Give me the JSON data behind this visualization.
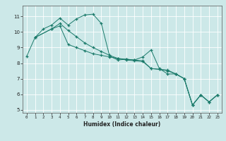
{
  "title": "",
  "xlabel": "Humidex (Indice chaleur)",
  "bg_color": "#cce8e8",
  "grid_color": "#ffffff",
  "line_color": "#1a7a6a",
  "xlim": [
    -0.5,
    23.5
  ],
  "ylim": [
    4.8,
    11.7
  ],
  "yticks": [
    5,
    6,
    7,
    8,
    9,
    10,
    11
  ],
  "xticks": [
    0,
    1,
    2,
    3,
    4,
    5,
    6,
    7,
    8,
    9,
    10,
    11,
    12,
    13,
    14,
    15,
    16,
    17,
    18,
    19,
    20,
    21,
    22,
    23
  ],
  "series": [
    {
      "x": [
        0,
        1,
        2,
        3,
        4,
        5,
        6,
        7,
        8,
        9,
        10,
        11,
        12,
        13,
        14,
        15,
        16,
        17,
        18,
        19,
        20,
        21,
        22,
        23
      ],
      "y": [
        8.45,
        9.65,
        10.2,
        10.45,
        10.9,
        10.45,
        10.85,
        11.1,
        11.15,
        10.55,
        8.45,
        8.2,
        8.25,
        8.2,
        8.4,
        8.85,
        7.65,
        7.3,
        7.3,
        7.0,
        5.3,
        5.95,
        5.5,
        5.95
      ]
    },
    {
      "x": [
        1,
        3,
        4,
        5,
        6,
        7,
        8,
        9,
        10,
        11,
        12,
        13,
        14,
        15,
        16,
        17,
        18,
        19,
        20,
        21,
        22,
        23
      ],
      "y": [
        9.65,
        10.2,
        10.4,
        9.2,
        9.0,
        8.8,
        8.6,
        8.5,
        8.4,
        8.3,
        8.25,
        8.2,
        8.15,
        7.65,
        7.6,
        7.55,
        7.3,
        7.0,
        5.3,
        5.95,
        5.5,
        5.95
      ]
    },
    {
      "x": [
        1,
        3,
        4,
        5,
        6,
        7,
        8,
        9,
        10,
        11,
        12,
        13,
        14,
        15,
        16,
        17,
        18,
        19,
        20,
        21,
        22,
        23
      ],
      "y": [
        9.65,
        10.2,
        10.55,
        10.1,
        9.7,
        9.3,
        9.0,
        8.75,
        8.5,
        8.3,
        8.2,
        8.15,
        8.1,
        7.65,
        7.6,
        7.5,
        7.3,
        7.0,
        5.3,
        5.95,
        5.5,
        5.95
      ]
    }
  ]
}
